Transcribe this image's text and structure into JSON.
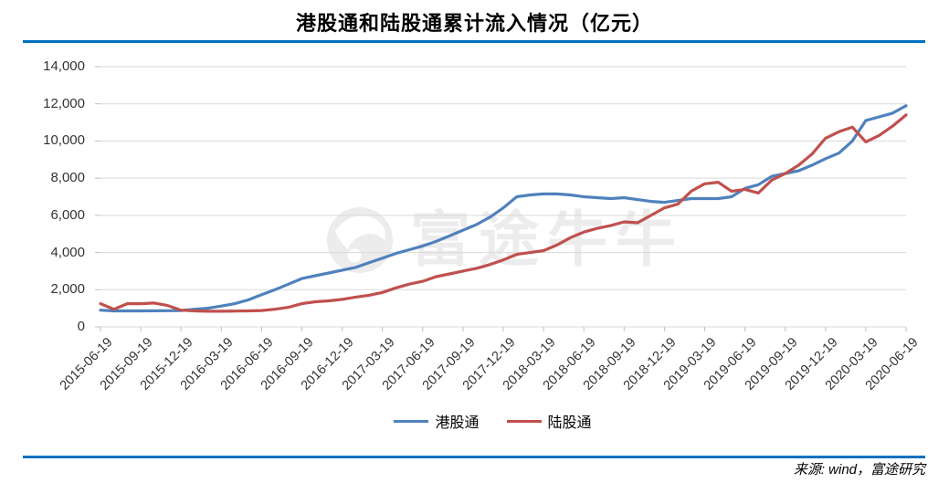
{
  "header": {
    "title": "港股通和陆股通累计流入情况（亿元）"
  },
  "footer": {
    "source": "来源: wind，富途研究"
  },
  "watermark": {
    "text": "富途牛牛"
  },
  "colors": {
    "rule_blue": "#0070C0",
    "grid": "#D9D9D9",
    "tick": "#BFBFBF",
    "axis_text": "#333333",
    "watermark_gray": "#ECECEC",
    "series_hkconnect": "#4F81BD",
    "series_mainlandconnect": "#C0504D"
  },
  "chart_data": {
    "type": "line",
    "title": "港股通和陆股通累计流入情况（亿元）",
    "xlabel": "",
    "ylabel": "",
    "ylim": [
      0,
      14000
    ],
    "grid": "horizontal",
    "legend_position": "bottom",
    "y_tick_labels_top_down": [
      "14,000",
      "12,000",
      "10,000",
      "8,000",
      "6,000",
      "4,000",
      "2,000",
      "0"
    ],
    "x_tick_labels": [
      "2015-06-19",
      "2015-09-19",
      "2015-12-19",
      "2016-03-19",
      "2016-06-19",
      "2016-09-19",
      "2016-12-19",
      "2017-03-19",
      "2017-06-19",
      "2017-09-19",
      "2017-12-19",
      "2018-03-19",
      "2018-06-19",
      "2018-09-19",
      "2018-12-19",
      "2019-03-19",
      "2019-06-19",
      "2019-09-19",
      "2019-12-19",
      "2020-03-19",
      "2020-06-19"
    ],
    "x": [
      "2015-06",
      "2015-07",
      "2015-08",
      "2015-09",
      "2015-10",
      "2015-11",
      "2015-12",
      "2016-01",
      "2016-02",
      "2016-03",
      "2016-04",
      "2016-05",
      "2016-06",
      "2016-07",
      "2016-08",
      "2016-09",
      "2016-10",
      "2016-11",
      "2016-12",
      "2017-01",
      "2017-02",
      "2017-03",
      "2017-04",
      "2017-05",
      "2017-06",
      "2017-07",
      "2017-08",
      "2017-09",
      "2017-10",
      "2017-11",
      "2017-12",
      "2018-01",
      "2018-02",
      "2018-03",
      "2018-04",
      "2018-05",
      "2018-06",
      "2018-07",
      "2018-08",
      "2018-09",
      "2018-10",
      "2018-11",
      "2018-12",
      "2019-01",
      "2019-02",
      "2019-03",
      "2019-04",
      "2019-05",
      "2019-06",
      "2019-07",
      "2019-08",
      "2019-09",
      "2019-10",
      "2019-11",
      "2019-12",
      "2020-01",
      "2020-02",
      "2020-03",
      "2020-04",
      "2020-05",
      "2020-06"
    ],
    "series": [
      {
        "name": "港股通",
        "color": "#4F81BD",
        "values": [
          900,
          860,
          860,
          860,
          865,
          870,
          880,
          950,
          1000,
          1120,
          1250,
          1450,
          1730,
          2000,
          2300,
          2600,
          2750,
          2900,
          3050,
          3200,
          3450,
          3700,
          3950,
          4150,
          4350,
          4600,
          4900,
          5200,
          5500,
          5900,
          6400,
          7000,
          7100,
          7150,
          7150,
          7100,
          7000,
          6950,
          6900,
          6950,
          6850,
          6750,
          6700,
          6800,
          6900,
          6900,
          6900,
          7000,
          7450,
          7650,
          8100,
          8250,
          8400,
          8700,
          9050,
          9350,
          10000,
          11100,
          11300,
          11500,
          11900
        ]
      },
      {
        "name": "陆股通",
        "color": "#C0504D",
        "values": [
          1250,
          950,
          1250,
          1250,
          1280,
          1150,
          900,
          860,
          840,
          840,
          850,
          860,
          880,
          950,
          1050,
          1250,
          1350,
          1400,
          1480,
          1600,
          1700,
          1850,
          2100,
          2300,
          2450,
          2700,
          2850,
          3000,
          3150,
          3350,
          3600,
          3900,
          4000,
          4100,
          4400,
          4800,
          5100,
          5300,
          5450,
          5650,
          5600,
          6000,
          6400,
          6600,
          7300,
          7700,
          7780,
          7300,
          7400,
          7200,
          7900,
          8250,
          8700,
          9300,
          10150,
          10500,
          10750,
          9950,
          10300,
          10800,
          11400
        ]
      }
    ]
  }
}
